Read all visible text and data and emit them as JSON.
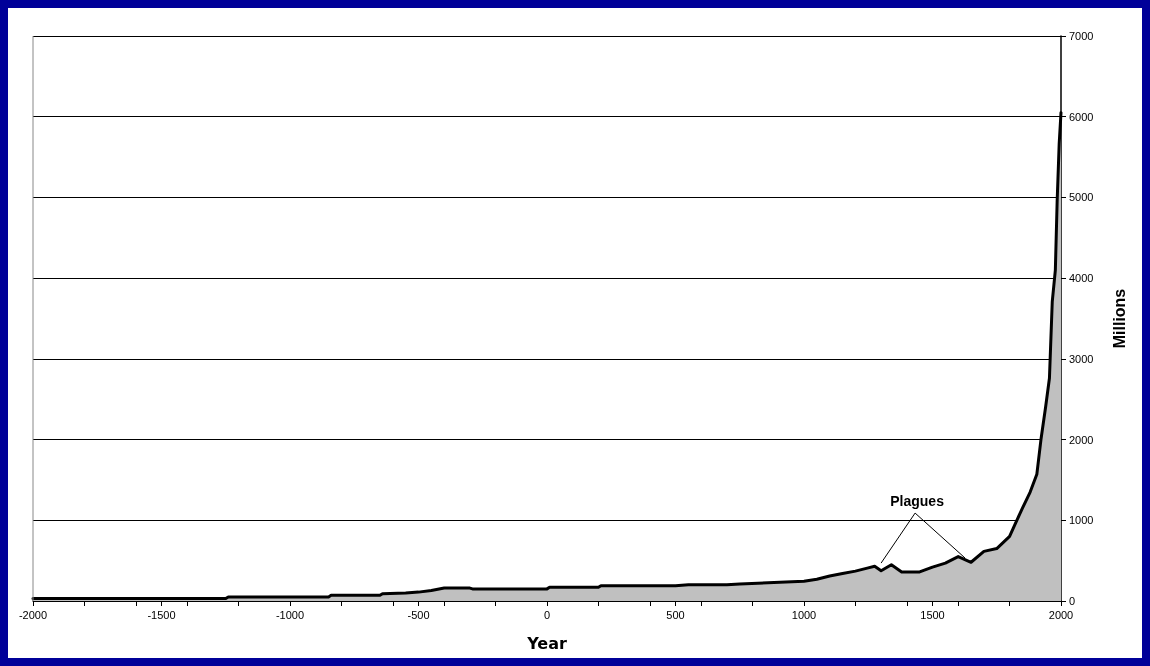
{
  "chart_data": {
    "type": "area",
    "xlabel": "Year",
    "ylabel": "Millions",
    "x": [
      -2000,
      -1250,
      -1240,
      -850,
      -840,
      -650,
      -640,
      -550,
      -500,
      -450,
      -400,
      -300,
      -290,
      0,
      10,
      200,
      210,
      500,
      550,
      700,
      750,
      1000,
      1050,
      1100,
      1150,
      1200,
      1250,
      1275,
      1300,
      1340,
      1380,
      1450,
      1500,
      1550,
      1600,
      1650,
      1700,
      1750,
      1800,
      1821,
      1850,
      1880,
      1906,
      1922,
      1940,
      1955,
      1966,
      1978,
      1985,
      1993,
      2000
    ],
    "series": [
      {
        "color": "#c0c0c0",
        "values": [
          30,
          30,
          50,
          50,
          70,
          70,
          90,
          100,
          110,
          130,
          160,
          160,
          150,
          150,
          170,
          170,
          190,
          190,
          200,
          200,
          210,
          245,
          270,
          310,
          340,
          370,
          410,
          430,
          375,
          450,
          360,
          360,
          420,
          470,
          550,
          480,
          615,
          650,
          800,
          950,
          1150,
          1350,
          1570,
          2000,
          2400,
          2760,
          3710,
          4100,
          4950,
          5670,
          6050
        ]
      }
    ],
    "xlim": [
      -2000,
      2000
    ],
    "xticks": [
      -2000,
      -1500,
      -1000,
      -500,
      0,
      500,
      1000,
      1500,
      2000
    ],
    "ylim": [
      0,
      7000
    ],
    "yticks": [
      0,
      1000,
      2000,
      3000,
      4000,
      5000,
      6000,
      7000
    ],
    "grid": "y",
    "marker": "none",
    "line_style": "solid",
    "annotations": [
      {
        "text": "Plagues",
        "x": 1300,
        "y": 470
      }
    ]
  }
}
